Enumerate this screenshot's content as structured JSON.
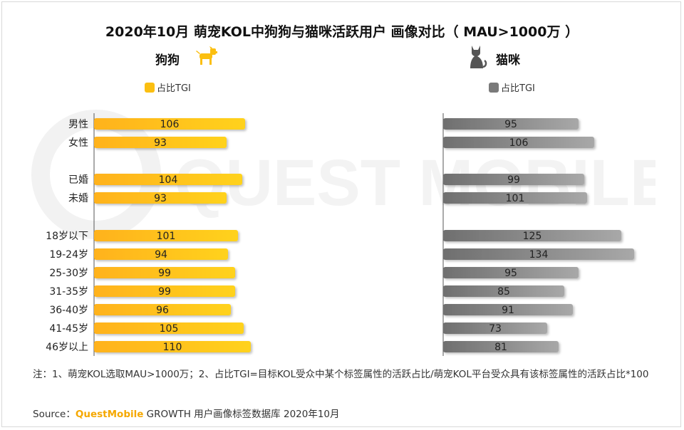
{
  "title": "2020年10月 萌宠KOL中狗狗与猫咪活跃用户 画像对比（ MAU>1000万 ）",
  "watermark_text": "QUEST MOBILE",
  "dog": {
    "label": "狗狗",
    "legend": "占比TGI",
    "color": "#fbbf11",
    "icon": "dog-icon"
  },
  "cat": {
    "label": "猫咪",
    "legend": "占比TGI",
    "color": "#8a8a8a",
    "icon": "cat-icon"
  },
  "chart_data": {
    "type": "bar",
    "orientation": "horizontal",
    "categories": [
      "男性",
      "女性",
      "已婚",
      "未婚",
      "18岁以下",
      "19-24岁",
      "25-30岁",
      "31-35岁",
      "36-40岁",
      "41-45岁",
      "46岁以上"
    ],
    "series": [
      {
        "name": "狗狗 占比TGI",
        "values": [
          106,
          93,
          104,
          93,
          101,
          94,
          99,
          99,
          96,
          105,
          110
        ]
      },
      {
        "name": "猫咪 占比TGI",
        "values": [
          95,
          106,
          99,
          101,
          125,
          134,
          95,
          85,
          91,
          73,
          81
        ]
      }
    ]
  },
  "note": "注：1、萌宠KOL选取MAU>1000万；2、占比TGI=目标KOL受众中某个标签属性的活跃占比/萌宠KOL平台受众具有该标签属性的活跃占比*100",
  "source": {
    "prefix": "Source：",
    "brand": "QuestMobile",
    "suffix": " GROWTH 用户画像标签数据库 2020年10月"
  }
}
